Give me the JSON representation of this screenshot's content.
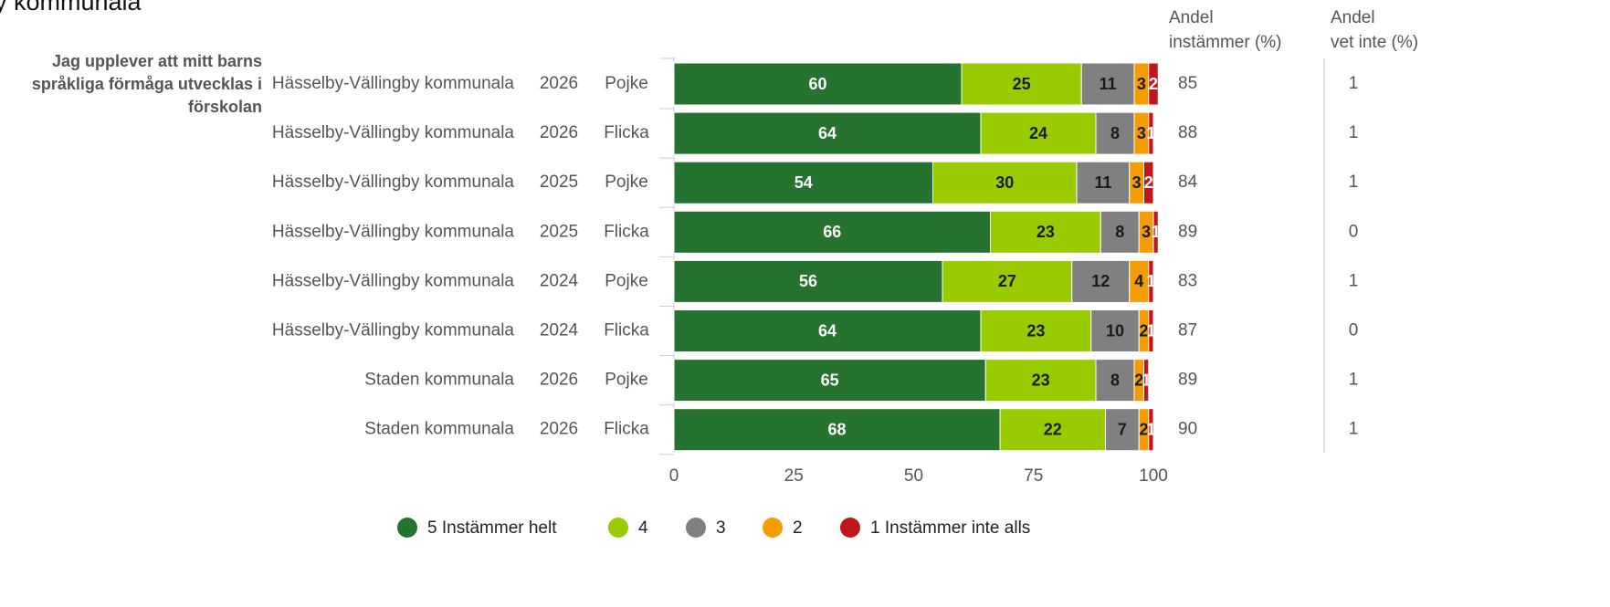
{
  "chart_data": {
    "type": "bar",
    "orientation": "horizontal",
    "stacked": true,
    "title": "y kommunala",
    "question": [
      "Jag upplever att mitt barns",
      "språkliga förmåga utvecklas i",
      "förskolan"
    ],
    "categories": [
      "Hässelby-Vällingby kommunala",
      "Hässelby-Vällingby kommunala",
      "Hässelby-Vällingby kommunala",
      "Hässelby-Vällingby kommunala",
      "Hässelby-Vällingby kommunala",
      "Hässelby-Vällingby kommunala",
      "Staden kommunala",
      "Staden kommunala"
    ],
    "years": [
      2026,
      2026,
      2025,
      2025,
      2024,
      2024,
      2026,
      2026
    ],
    "genders": [
      "Pojke",
      "Flicka",
      "Pojke",
      "Flicka",
      "Pojke",
      "Flicka",
      "Pojke",
      "Flicka"
    ],
    "series": [
      {
        "name": "5 Instämmer helt",
        "color": "#26722f",
        "label_color": "#ffffff",
        "values": [
          60,
          64,
          54,
          66,
          56,
          64,
          65,
          68
        ]
      },
      {
        "name": "4",
        "color": "#99cc00",
        "label_color": "#1a1a1a",
        "values": [
          25,
          24,
          30,
          23,
          27,
          23,
          23,
          22
        ]
      },
      {
        "name": "3",
        "color": "#808080",
        "label_color": "#1a1a1a",
        "values": [
          11,
          8,
          11,
          8,
          12,
          10,
          8,
          7
        ]
      },
      {
        "name": "2",
        "color": "#f59c00",
        "label_color": "#1a1a1a",
        "values": [
          3,
          3,
          3,
          3,
          4,
          2,
          2,
          2
        ]
      },
      {
        "name": "1 Instämmer inte alls",
        "color": "#c0161c",
        "label_color": "#ffffff",
        "values": [
          2,
          1,
          2,
          1,
          1,
          1,
          1,
          1
        ]
      }
    ],
    "xlim": [
      0,
      100
    ],
    "xticks": [
      0,
      25,
      50,
      75,
      100
    ],
    "columns": [
      {
        "header": [
          "Andel",
          "instämmer (%)"
        ],
        "values": [
          85,
          88,
          84,
          89,
          83,
          87,
          89,
          90
        ]
      },
      {
        "header": [
          "Andel",
          "vet inte (%)"
        ],
        "values": [
          1,
          1,
          1,
          0,
          1,
          0,
          1,
          1
        ]
      }
    ],
    "legend": "bottom"
  }
}
